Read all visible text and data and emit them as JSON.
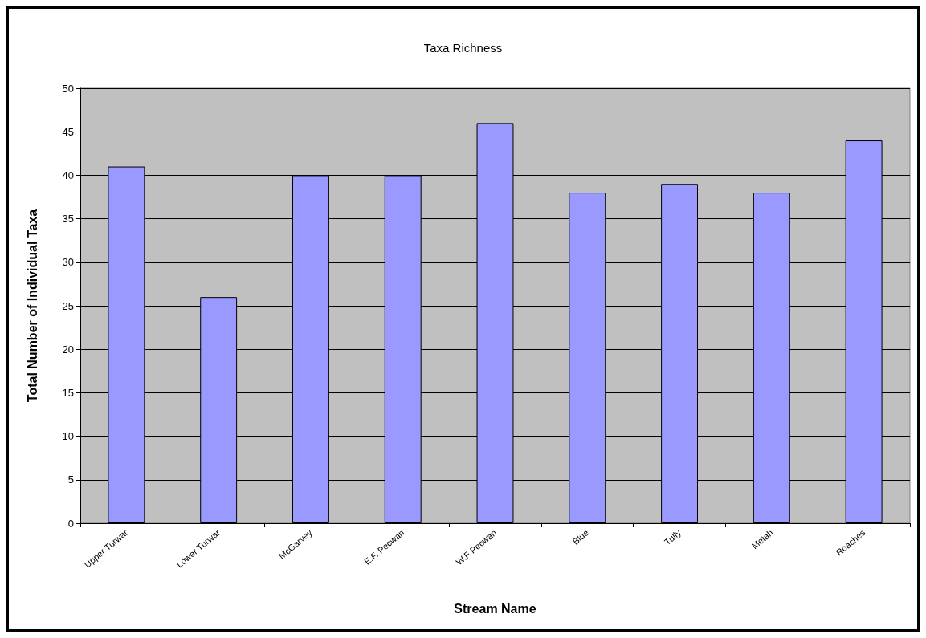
{
  "chart_data": {
    "type": "bar",
    "title": "Taxa Richness",
    "xlabel": "Stream Name",
    "ylabel": "Total Number of Individual Taxa",
    "categories": [
      "Upper Turwar",
      "Lower Turwar",
      "McGarvey",
      "E.F. Pecwan",
      "W.F Pecwan",
      "Blue",
      "Tully",
      "Metah",
      "Roaches"
    ],
    "values": [
      41,
      26,
      40,
      40,
      46,
      38,
      39,
      38,
      44
    ],
    "color": "#9999ff",
    "ylim": [
      0,
      50
    ],
    "yticks": [
      0,
      5,
      10,
      15,
      20,
      25,
      30,
      35,
      40,
      45,
      50
    ],
    "grid": "y"
  }
}
